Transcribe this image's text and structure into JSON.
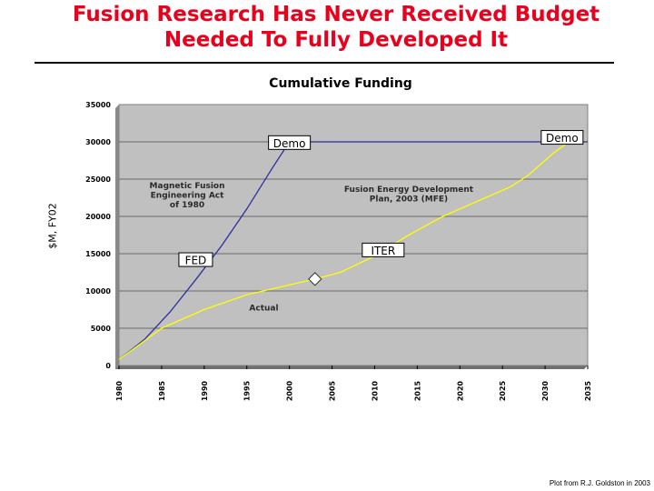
{
  "slide": {
    "title_line1": "Fusion Research Has Never Received Budget",
    "title_line2": "Needed To Fully Developed It",
    "credit": "Plot from R.J. Goldston in 2003"
  },
  "chart_data": {
    "type": "line",
    "title": "Cumulative Funding",
    "xlabel": "",
    "ylabel": "$M, FY02",
    "xlim": [
      1980,
      2035
    ],
    "ylim": [
      0,
      35000
    ],
    "x_ticks": [
      "1980",
      "1985",
      "1990",
      "1995",
      "2000",
      "2005",
      "2010",
      "2015",
      "2020",
      "2025",
      "2030",
      "2035"
    ],
    "y_ticks": [
      "35000",
      "30000",
      "25000",
      "20000",
      "15000",
      "10000",
      "5000",
      "0"
    ],
    "grid": true,
    "plot_background": "#c0c0c0",
    "series": [
      {
        "key": "mfea",
        "color": "#2b2f9e",
        "points": [
          [
            1980,
            800
          ],
          [
            1983,
            3500
          ],
          [
            1986,
            7200
          ],
          [
            1989,
            11500
          ],
          [
            1992,
            16000
          ],
          [
            1995,
            21000
          ],
          [
            1998,
            26500
          ],
          [
            2000,
            30000
          ],
          [
            2035,
            30000
          ]
        ]
      },
      {
        "key": "actual",
        "color": "#ffff00",
        "points": [
          [
            1980,
            800
          ],
          [
            1985,
            5000
          ],
          [
            1990,
            7500
          ],
          [
            1995,
            9500
          ],
          [
            2000,
            10800
          ],
          [
            2003,
            11600
          ],
          [
            2006,
            12500
          ],
          [
            2010,
            14700
          ],
          [
            2014,
            17500
          ],
          [
            2018,
            20000
          ],
          [
            2022,
            22000
          ],
          [
            2026,
            24000
          ],
          [
            2028,
            25500
          ],
          [
            2031,
            28500
          ],
          [
            2033,
            30200
          ]
        ]
      }
    ],
    "annotations": [
      {
        "text": "Magnetic Fusion",
        "x": 1988,
        "y": 23800
      },
      {
        "text": "Engineering Act",
        "x": 1988,
        "y": 22500
      },
      {
        "text": "of 1980",
        "x": 1988,
        "y": 21200
      },
      {
        "text": "Fusion Energy Development",
        "x": 2014,
        "y": 23300
      },
      {
        "text": "Plan, 2003 (MFE)",
        "x": 2014,
        "y": 22000
      },
      {
        "text": "Actual",
        "x": 1997,
        "y": 7400
      }
    ],
    "boxed_labels": [
      {
        "text": "Demo",
        "x": 2000,
        "y": 29900
      },
      {
        "text": "Demo",
        "x": 2032,
        "y": 30600
      },
      {
        "text": "FED",
        "x": 1989,
        "y": 14200
      },
      {
        "text": "ITER",
        "x": 2011,
        "y": 15500
      }
    ],
    "marker": {
      "shape": "diamond",
      "x": 2003,
      "y": 11600
    }
  }
}
